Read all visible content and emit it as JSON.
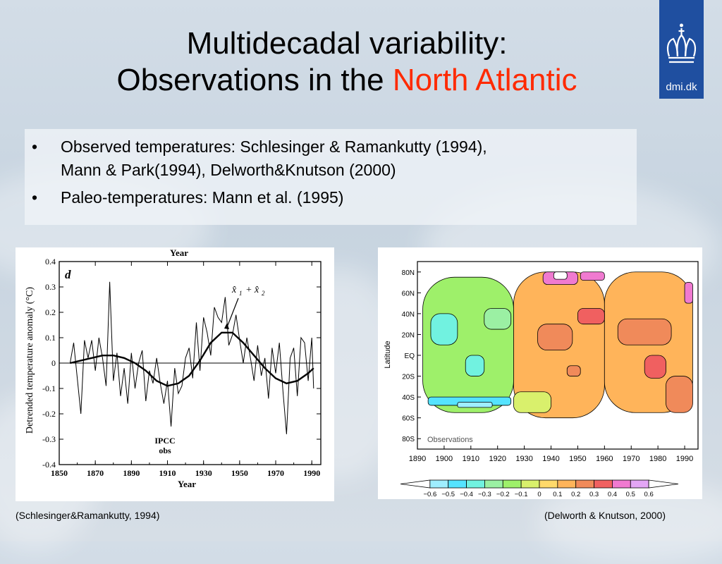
{
  "title": {
    "line1": "Multidecadal variability:",
    "line2_prefix": "Observations in the ",
    "line2_accent": "North Atlantic"
  },
  "logo": {
    "text": "dmi.dk",
    "icon": "crown-icon"
  },
  "bullets": [
    {
      "lines": [
        "Observed temperatures: Schlesinger & Ramankutty (1994),",
        "Mann & Park(1994), Delworth&Knutson (2000)"
      ]
    },
    {
      "lines": [
        "Paleo-temperatures: Mann et al. (1995)"
      ]
    }
  ],
  "colors": {
    "accent": "#ff2a00",
    "logo_bg": "#1f4fa0"
  },
  "chart_data": [
    {
      "type": "line",
      "panel_label": "d",
      "xlabel": "Year",
      "top_label": "Year",
      "ylabel": "Detrended temperature anomaly (°C)",
      "xlim": [
        1850,
        1995
      ],
      "ylim": [
        -0.4,
        0.4
      ],
      "xticks": [
        "1850",
        "1870",
        "1890",
        "1910",
        "1930",
        "1950",
        "1970",
        "1990"
      ],
      "yticks": [
        "0.4",
        "0.3",
        "0.2",
        "0.1",
        "0",
        "-0.1",
        "-0.2",
        "-0.3",
        "-0.4"
      ],
      "annotations": {
        "fit_label_a": "x̂",
        "fit_sub_a": "1",
        "fit_plus": "+",
        "fit_label_b": "x̂",
        "fit_sub_b": "2",
        "obs_label_1": "IPCC",
        "obs_label_2": "obs"
      },
      "series": [
        {
          "role": "observations",
          "x": [
            1856,
            1858,
            1860,
            1862,
            1864,
            1866,
            1868,
            1870,
            1872,
            1874,
            1876,
            1878,
            1880,
            1882,
            1884,
            1886,
            1888,
            1890,
            1892,
            1894,
            1896,
            1898,
            1900,
            1902,
            1904,
            1906,
            1908,
            1910,
            1912,
            1914,
            1916,
            1918,
            1920,
            1922,
            1924,
            1926,
            1928,
            1930,
            1932,
            1934,
            1936,
            1938,
            1940,
            1942,
            1944,
            1946,
            1948,
            1950,
            1952,
            1954,
            1956,
            1958,
            1960,
            1962,
            1964,
            1966,
            1968,
            1970,
            1972,
            1974,
            1976,
            1978,
            1980,
            1982,
            1984,
            1986,
            1988,
            1990,
            1991
          ],
          "y": [
            0.0,
            0.08,
            -0.06,
            -0.2,
            0.09,
            0.02,
            0.09,
            -0.03,
            0.1,
            0.02,
            -0.09,
            0.32,
            -0.07,
            0.04,
            -0.13,
            -0.02,
            -0.16,
            0.04,
            -0.1,
            0.0,
            0.05,
            -0.15,
            -0.03,
            -0.08,
            0.02,
            -0.08,
            -0.16,
            -0.07,
            -0.25,
            -0.02,
            -0.12,
            -0.09,
            0.02,
            0.06,
            -0.06,
            0.16,
            -0.03,
            0.18,
            0.12,
            0.03,
            0.22,
            0.18,
            0.16,
            0.26,
            0.07,
            0.11,
            0.19,
            0.09,
            0.0,
            0.1,
            0.02,
            -0.07,
            0.07,
            -0.05,
            0.02,
            -0.14,
            0.06,
            -0.04,
            0.08,
            -0.11,
            -0.28,
            0.02,
            0.06,
            -0.13,
            0.1,
            0.08,
            -0.07,
            0.1,
            -0.1
          ]
        },
        {
          "role": "smoothed fit",
          "x": [
            1856,
            1862,
            1868,
            1874,
            1880,
            1886,
            1892,
            1898,
            1904,
            1910,
            1916,
            1922,
            1928,
            1934,
            1940,
            1946,
            1952,
            1958,
            1964,
            1970,
            1976,
            1982,
            1988,
            1991
          ],
          "y": [
            0.0,
            0.01,
            0.02,
            0.03,
            0.03,
            0.02,
            0.0,
            -0.03,
            -0.07,
            -0.09,
            -0.08,
            -0.05,
            0.01,
            0.08,
            0.12,
            0.12,
            0.08,
            0.03,
            -0.02,
            -0.06,
            -0.08,
            -0.07,
            -0.04,
            -0.02
          ]
        }
      ]
    },
    {
      "type": "heatmap",
      "xlabel": "",
      "ylabel": "Latitude",
      "map_label": "Observations",
      "xlim": [
        1890,
        1995
      ],
      "ylim": [
        -90,
        90
      ],
      "xticks": [
        "1890",
        "1900",
        "1910",
        "1920",
        "1930",
        "1940",
        "1950",
        "1960",
        "1970",
        "1980",
        "1990"
      ],
      "yticks": [
        "80N",
        "60N",
        "40N",
        "20N",
        "EQ",
        "20S",
        "40S",
        "60S",
        "80S"
      ],
      "legend_position": "bottom",
      "colorbar": {
        "labels": [
          "-0.6",
          "-0.5",
          "-0.4",
          "-0.3",
          "-0.2",
          "-0.1",
          "0",
          "0.1",
          "0.2",
          "0.3",
          "0.4",
          "0.5",
          "0.6"
        ],
        "colors": [
          "#ffffff",
          "#9feeff",
          "#55e3ff",
          "#71f2e0",
          "#9bf0a3",
          "#9ef06a",
          "#d9f06c",
          "#ffd96a",
          "#ffb45a",
          "#f08a5a",
          "#f06060",
          "#f07ad0",
          "#e3a6f5",
          "#ffffff"
        ]
      },
      "regions": [
        {
          "x0": 1892,
          "x1": 1926,
          "y0": -55,
          "y1": 75,
          "level": "-0.2"
        },
        {
          "x0": 1926,
          "x1": 1960,
          "y0": -60,
          "y1": 80,
          "level": "0.1"
        },
        {
          "x0": 1960,
          "x1": 1993,
          "y0": -55,
          "y1": 80,
          "level": "0.1"
        },
        {
          "x0": 1895,
          "x1": 1905,
          "y0": 10,
          "y1": 40,
          "level": "-0.4"
        },
        {
          "x0": 1908,
          "x1": 1915,
          "y0": -20,
          "y1": 0,
          "level": "-0.4"
        },
        {
          "x0": 1915,
          "x1": 1925,
          "y0": 25,
          "y1": 45,
          "level": "-0.3"
        },
        {
          "x0": 1894,
          "x1": 1925,
          "y0": -48,
          "y1": -40,
          "level": "-0.5"
        },
        {
          "x0": 1905,
          "x1": 1918,
          "y0": -50,
          "y1": -45,
          "level": "-0.6"
        },
        {
          "x0": 1935,
          "x1": 1948,
          "y0": 5,
          "y1": 30,
          "level": "0.2"
        },
        {
          "x0": 1950,
          "x1": 1960,
          "y0": 30,
          "y1": 45,
          "level": "0.3"
        },
        {
          "x0": 1946,
          "x1": 1951,
          "y0": -20,
          "y1": -10,
          "level": "0.2"
        },
        {
          "x0": 1975,
          "x1": 1983,
          "y0": -22,
          "y1": 0,
          "level": "0.3"
        },
        {
          "x0": 1937,
          "x1": 1950,
          "y0": 68,
          "y1": 80,
          "level": "0.4"
        },
        {
          "x0": 1941,
          "x1": 1946,
          "y0": 73,
          "y1": 80,
          "level": "0.6"
        },
        {
          "x0": 1951,
          "x1": 1960,
          "y0": 72,
          "y1": 80,
          "level": "0.4"
        },
        {
          "x0": 1990,
          "x1": 1993,
          "y0": 50,
          "y1": 70,
          "level": "0.4"
        },
        {
          "x0": 1965,
          "x1": 1985,
          "y0": 10,
          "y1": 35,
          "level": "0.2"
        },
        {
          "x0": 1983,
          "x1": 1993,
          "y0": -55,
          "y1": -20,
          "level": "0.2"
        },
        {
          "x0": 1926,
          "x1": 1940,
          "y0": -55,
          "y1": -35,
          "level": "-0.1"
        }
      ]
    }
  ],
  "captions": {
    "left": "(Schlesinger&Ramankutty, 1994)",
    "right": "(Delworth & Knutson, 2000)"
  }
}
